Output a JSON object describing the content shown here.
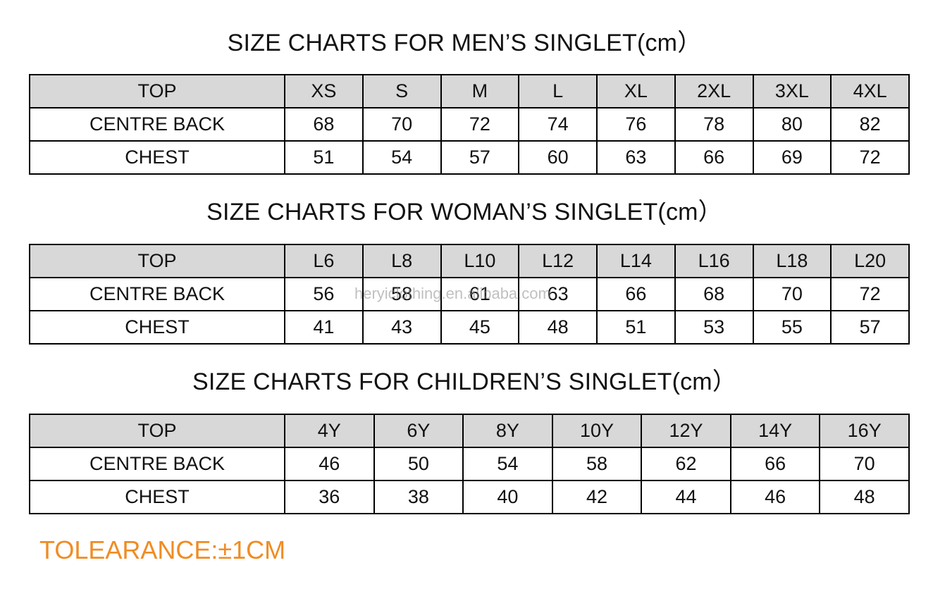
{
  "colors": {
    "header_fill": "#d8d8d8",
    "border": "#000000",
    "tolerance_text": "#f08c23",
    "watermark": "#8c8c8c"
  },
  "men": {
    "title": "SIZE CHARTS FOR MEN’S SINGLET(cm）",
    "header": [
      "TOP",
      "XS",
      "S",
      "M",
      "L",
      "XL",
      "2XL",
      "3XL",
      "4XL"
    ],
    "rows": [
      [
        "CENTRE BACK",
        "68",
        "70",
        "72",
        "74",
        "76",
        "78",
        "80",
        "82"
      ],
      [
        "CHEST",
        "51",
        "54",
        "57",
        "60",
        "63",
        "66",
        "69",
        "72"
      ]
    ]
  },
  "women": {
    "title": "SIZE CHARTS FOR WOMAN’S SINGLET(cm）",
    "header": [
      "TOP",
      "L6",
      "L8",
      "L10",
      "L12",
      "L14",
      "L16",
      "L18",
      "L20"
    ],
    "rows": [
      [
        "CENTRE BACK",
        "56",
        "58",
        "61",
        "63",
        "66",
        "68",
        "70",
        "72"
      ],
      [
        "CHEST",
        "41",
        "43",
        "45",
        "48",
        "51",
        "53",
        "55",
        "57"
      ]
    ]
  },
  "children": {
    "title": "SIZE CHARTS FOR CHILDREN’S SINGLET(cm）",
    "header": [
      "TOP",
      "4Y",
      "6Y",
      "8Y",
      "10Y",
      "12Y",
      "14Y",
      "16Y"
    ],
    "rows": [
      [
        "CENTRE BACK",
        "46",
        "50",
        "54",
        "58",
        "62",
        "66",
        "70"
      ],
      [
        "CHEST",
        "36",
        "38",
        "40",
        "42",
        "44",
        "46",
        "48"
      ]
    ]
  },
  "watermark": "heryiclothing.en.alibaba.com",
  "tolerance": "TOLEARANCE:±1CM"
}
